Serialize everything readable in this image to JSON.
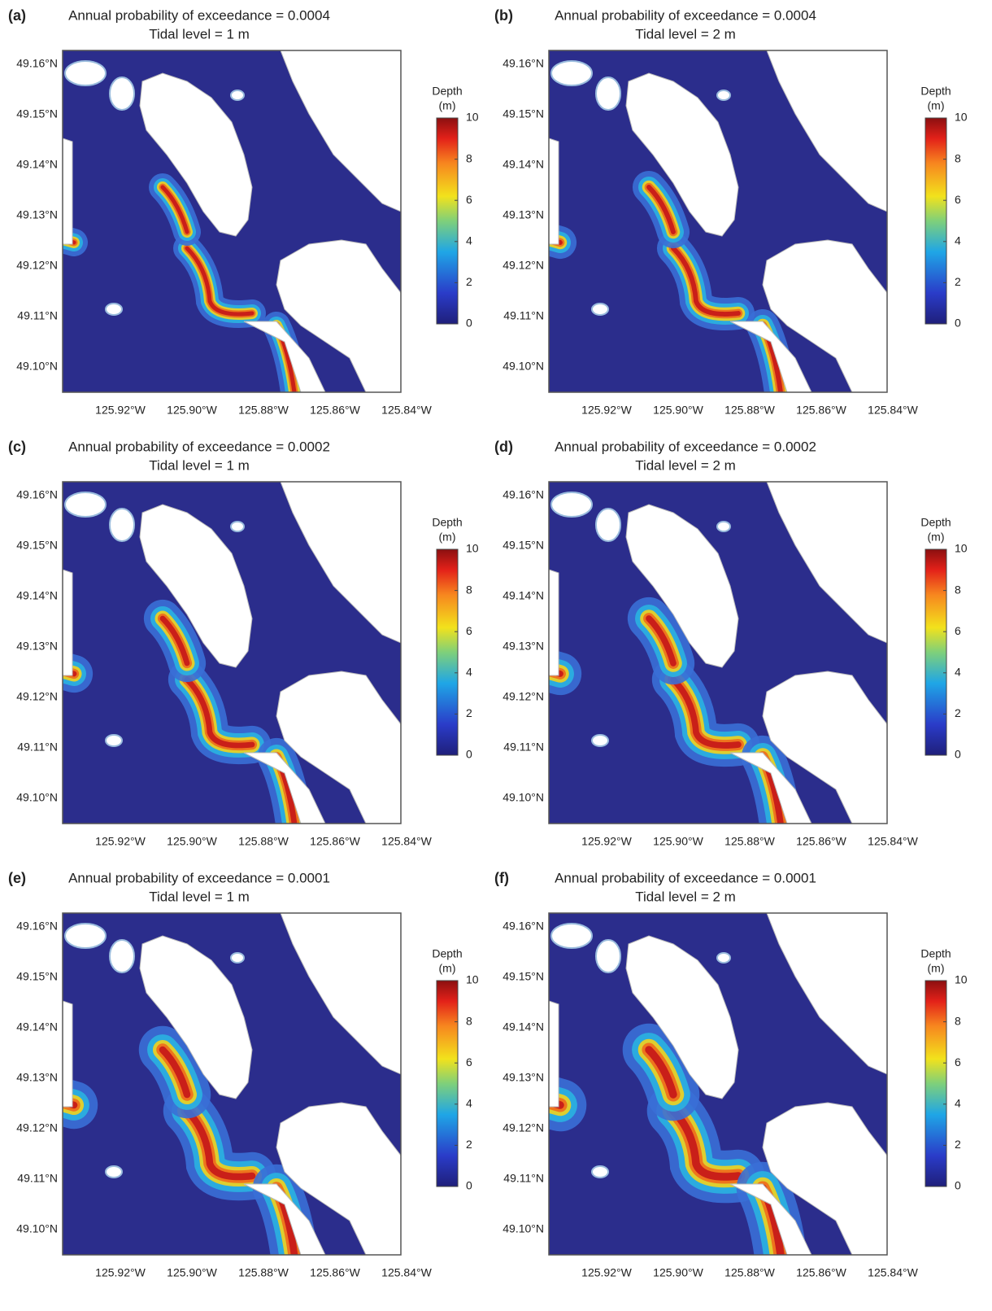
{
  "panels": [
    {
      "label": "(a)",
      "title": "Annual probability of exceedance = 0.0004",
      "subtitle": "Tidal level = 1 m"
    },
    {
      "label": "(b)",
      "title": "Annual probability of exceedance = 0.0004",
      "subtitle": "Tidal level = 2 m"
    },
    {
      "label": "(c)",
      "title": "Annual probability of exceedance = 0.0002",
      "subtitle": "Tidal level = 1 m"
    },
    {
      "label": "(d)",
      "title": "Annual probability of exceedance = 0.0002",
      "subtitle": "Tidal level = 2 m"
    },
    {
      "label": "(e)",
      "title": "Annual probability of exceedance = 0.0001",
      "subtitle": "Tidal level = 1 m"
    },
    {
      "label": "(f)",
      "title": "Annual probability of exceedance = 0.0001",
      "subtitle": "Tidal level = 2 m"
    }
  ],
  "axes": {
    "lat_labels": [
      "49.16°N",
      "49.15°N",
      "49.14°N",
      "49.13°N",
      "49.12°N",
      "49.11°N",
      "49.10°N"
    ],
    "lon_labels": [
      "125.92°W",
      "125.90°W",
      "125.88°W",
      "125.86°W",
      "125.84°W"
    ]
  },
  "colorbar": {
    "title": "Depth",
    "unit": "(m)",
    "range": [
      0,
      10
    ],
    "ticks": [
      0,
      2,
      4,
      6,
      8,
      10
    ]
  }
}
